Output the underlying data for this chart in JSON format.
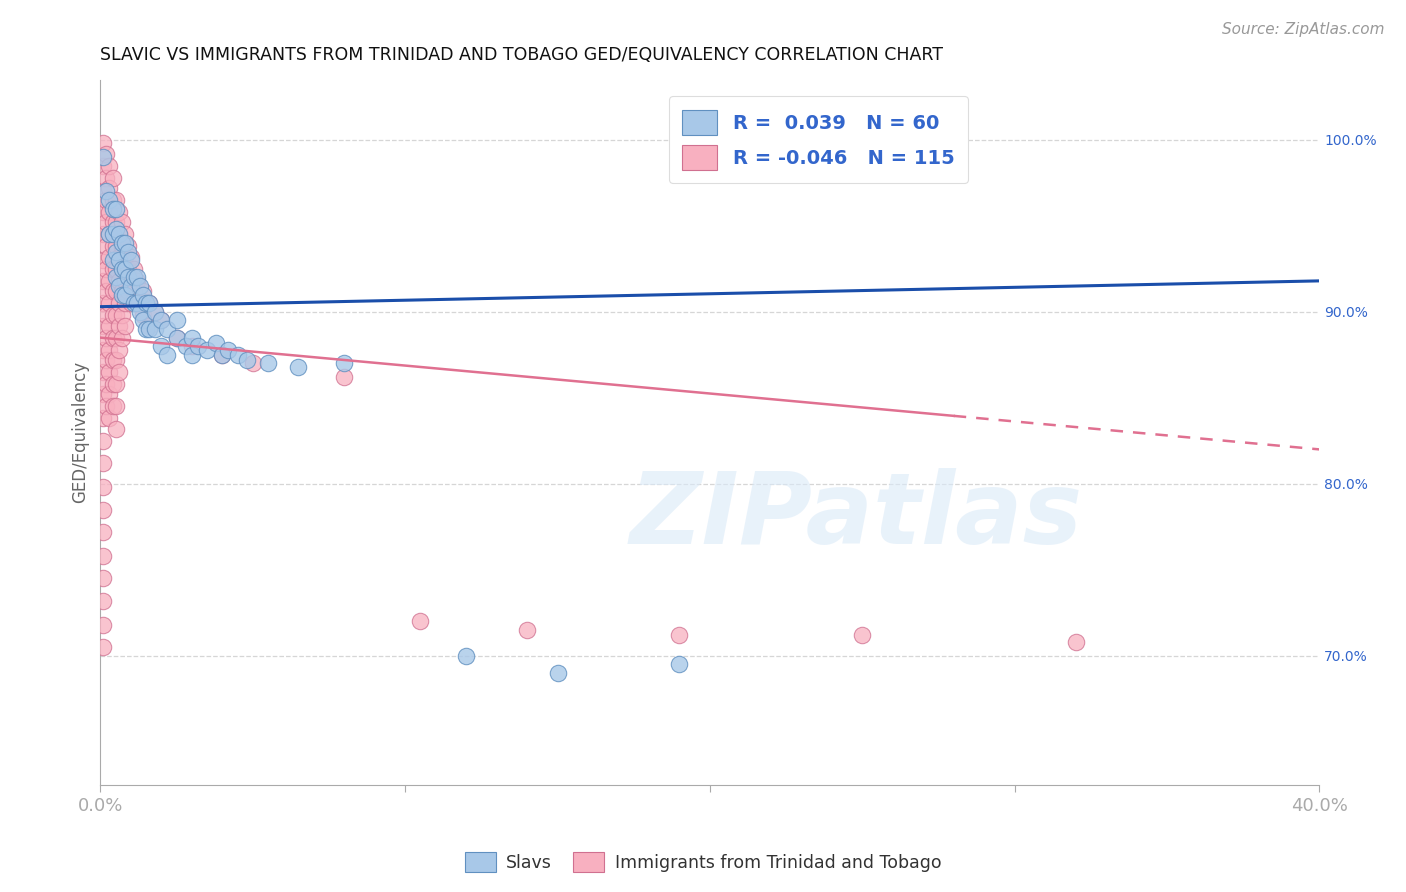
{
  "title": "SLAVIC VS IMMIGRANTS FROM TRINIDAD AND TOBAGO GED/EQUIVALENCY CORRELATION CHART",
  "source": "Source: ZipAtlas.com",
  "ylabel": "GED/Equivalency",
  "ytick_values": [
    0.7,
    0.8,
    0.9,
    1.0
  ],
  "xlim": [
    0.0,
    0.4
  ],
  "ylim": [
    0.625,
    1.035
  ],
  "slavs_color": "#a8c8e8",
  "slavs_edge": "#6090c0",
  "tt_color": "#f8b0c0",
  "tt_edge": "#d07090",
  "watermark": "ZIPatlas",
  "background_color": "#ffffff",
  "grid_color": "#cccccc",
  "axis_label_color": "#3366cc",
  "title_color": "#111111",
  "slavs_line_color": "#1a4eaa",
  "tt_line_color": "#e07090",
  "slavs_line_x": [
    0.0,
    0.4
  ],
  "slavs_line_y": [
    0.903,
    0.918
  ],
  "tt_line_x": [
    0.0,
    0.4
  ],
  "tt_line_y": [
    0.885,
    0.82
  ],
  "slavs_points": [
    [
      0.001,
      0.99
    ],
    [
      0.002,
      0.97
    ],
    [
      0.003,
      0.965
    ],
    [
      0.003,
      0.945
    ],
    [
      0.004,
      0.96
    ],
    [
      0.004,
      0.945
    ],
    [
      0.004,
      0.93
    ],
    [
      0.005,
      0.96
    ],
    [
      0.005,
      0.948
    ],
    [
      0.005,
      0.935
    ],
    [
      0.005,
      0.92
    ],
    [
      0.006,
      0.945
    ],
    [
      0.006,
      0.93
    ],
    [
      0.006,
      0.915
    ],
    [
      0.007,
      0.94
    ],
    [
      0.007,
      0.925
    ],
    [
      0.007,
      0.91
    ],
    [
      0.008,
      0.94
    ],
    [
      0.008,
      0.925
    ],
    [
      0.008,
      0.91
    ],
    [
      0.009,
      0.935
    ],
    [
      0.009,
      0.92
    ],
    [
      0.01,
      0.93
    ],
    [
      0.01,
      0.915
    ],
    [
      0.011,
      0.92
    ],
    [
      0.011,
      0.905
    ],
    [
      0.012,
      0.92
    ],
    [
      0.012,
      0.905
    ],
    [
      0.013,
      0.915
    ],
    [
      0.013,
      0.9
    ],
    [
      0.014,
      0.91
    ],
    [
      0.014,
      0.895
    ],
    [
      0.015,
      0.905
    ],
    [
      0.015,
      0.89
    ],
    [
      0.016,
      0.905
    ],
    [
      0.016,
      0.89
    ],
    [
      0.018,
      0.9
    ],
    [
      0.018,
      0.89
    ],
    [
      0.02,
      0.895
    ],
    [
      0.02,
      0.88
    ],
    [
      0.022,
      0.89
    ],
    [
      0.022,
      0.875
    ],
    [
      0.025,
      0.885
    ],
    [
      0.025,
      0.895
    ],
    [
      0.028,
      0.88
    ],
    [
      0.03,
      0.885
    ],
    [
      0.03,
      0.875
    ],
    [
      0.032,
      0.88
    ],
    [
      0.035,
      0.878
    ],
    [
      0.038,
      0.882
    ],
    [
      0.04,
      0.875
    ],
    [
      0.042,
      0.878
    ],
    [
      0.045,
      0.875
    ],
    [
      0.048,
      0.872
    ],
    [
      0.055,
      0.87
    ],
    [
      0.065,
      0.868
    ],
    [
      0.08,
      0.87
    ],
    [
      0.12,
      0.7
    ],
    [
      0.15,
      0.69
    ],
    [
      0.19,
      0.695
    ]
  ],
  "tt_points": [
    [
      0.001,
      0.998
    ],
    [
      0.001,
      0.985
    ],
    [
      0.001,
      0.97
    ],
    [
      0.001,
      0.958
    ],
    [
      0.001,
      0.945
    ],
    [
      0.001,
      0.93
    ],
    [
      0.001,
      0.918
    ],
    [
      0.001,
      0.905
    ],
    [
      0.001,
      0.892
    ],
    [
      0.001,
      0.878
    ],
    [
      0.001,
      0.865
    ],
    [
      0.001,
      0.852
    ],
    [
      0.001,
      0.838
    ],
    [
      0.001,
      0.825
    ],
    [
      0.001,
      0.812
    ],
    [
      0.001,
      0.798
    ],
    [
      0.001,
      0.785
    ],
    [
      0.001,
      0.772
    ],
    [
      0.001,
      0.758
    ],
    [
      0.001,
      0.745
    ],
    [
      0.001,
      0.732
    ],
    [
      0.001,
      0.718
    ],
    [
      0.001,
      0.705
    ],
    [
      0.002,
      0.992
    ],
    [
      0.002,
      0.978
    ],
    [
      0.002,
      0.965
    ],
    [
      0.002,
      0.952
    ],
    [
      0.002,
      0.938
    ],
    [
      0.002,
      0.925
    ],
    [
      0.002,
      0.912
    ],
    [
      0.002,
      0.898
    ],
    [
      0.002,
      0.885
    ],
    [
      0.002,
      0.872
    ],
    [
      0.002,
      0.858
    ],
    [
      0.002,
      0.845
    ],
    [
      0.003,
      0.985
    ],
    [
      0.003,
      0.972
    ],
    [
      0.003,
      0.958
    ],
    [
      0.003,
      0.945
    ],
    [
      0.003,
      0.932
    ],
    [
      0.003,
      0.918
    ],
    [
      0.003,
      0.905
    ],
    [
      0.003,
      0.892
    ],
    [
      0.003,
      0.878
    ],
    [
      0.003,
      0.865
    ],
    [
      0.003,
      0.852
    ],
    [
      0.003,
      0.838
    ],
    [
      0.004,
      0.978
    ],
    [
      0.004,
      0.965
    ],
    [
      0.004,
      0.952
    ],
    [
      0.004,
      0.938
    ],
    [
      0.004,
      0.925
    ],
    [
      0.004,
      0.912
    ],
    [
      0.004,
      0.898
    ],
    [
      0.004,
      0.885
    ],
    [
      0.004,
      0.872
    ],
    [
      0.004,
      0.858
    ],
    [
      0.004,
      0.845
    ],
    [
      0.005,
      0.965
    ],
    [
      0.005,
      0.952
    ],
    [
      0.005,
      0.938
    ],
    [
      0.005,
      0.925
    ],
    [
      0.005,
      0.912
    ],
    [
      0.005,
      0.898
    ],
    [
      0.005,
      0.885
    ],
    [
      0.005,
      0.872
    ],
    [
      0.005,
      0.858
    ],
    [
      0.005,
      0.845
    ],
    [
      0.005,
      0.832
    ],
    [
      0.006,
      0.958
    ],
    [
      0.006,
      0.945
    ],
    [
      0.006,
      0.932
    ],
    [
      0.006,
      0.918
    ],
    [
      0.006,
      0.905
    ],
    [
      0.006,
      0.892
    ],
    [
      0.006,
      0.878
    ],
    [
      0.006,
      0.865
    ],
    [
      0.007,
      0.952
    ],
    [
      0.007,
      0.938
    ],
    [
      0.007,
      0.925
    ],
    [
      0.007,
      0.912
    ],
    [
      0.007,
      0.898
    ],
    [
      0.007,
      0.885
    ],
    [
      0.008,
      0.945
    ],
    [
      0.008,
      0.932
    ],
    [
      0.008,
      0.918
    ],
    [
      0.008,
      0.905
    ],
    [
      0.008,
      0.892
    ],
    [
      0.009,
      0.938
    ],
    [
      0.009,
      0.925
    ],
    [
      0.009,
      0.912
    ],
    [
      0.01,
      0.932
    ],
    [
      0.01,
      0.918
    ],
    [
      0.01,
      0.905
    ],
    [
      0.011,
      0.925
    ],
    [
      0.011,
      0.912
    ],
    [
      0.012,
      0.918
    ],
    [
      0.012,
      0.905
    ],
    [
      0.014,
      0.912
    ],
    [
      0.014,
      0.898
    ],
    [
      0.016,
      0.905
    ],
    [
      0.016,
      0.892
    ],
    [
      0.018,
      0.9
    ],
    [
      0.02,
      0.895
    ],
    [
      0.025,
      0.885
    ],
    [
      0.03,
      0.88
    ],
    [
      0.04,
      0.875
    ],
    [
      0.05,
      0.87
    ],
    [
      0.08,
      0.862
    ],
    [
      0.105,
      0.72
    ],
    [
      0.14,
      0.715
    ],
    [
      0.19,
      0.712
    ],
    [
      0.25,
      0.712
    ],
    [
      0.32,
      0.708
    ]
  ]
}
